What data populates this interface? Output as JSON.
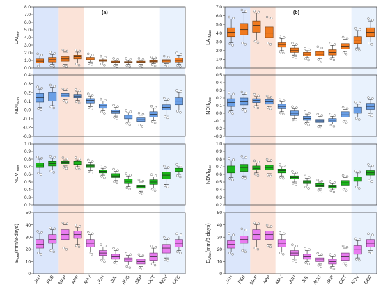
{
  "chart_data": [
    {
      "type": "boxplot",
      "panel_label": "(a)",
      "categories": [
        "JAN",
        "FEB",
        "MAR",
        "APR",
        "MAY",
        "JUN",
        "JUL",
        "AUG",
        "SEP",
        "OCT",
        "NOV",
        "DEC"
      ],
      "highlight_bands": [
        {
          "months": [
            "JAN",
            "FEB"
          ],
          "color": "#dbe6fb"
        },
        {
          "months": [
            "MAR",
            "APR"
          ],
          "color": "#fbe3d8"
        },
        {
          "months": [
            "NOV",
            "DEC"
          ],
          "color": "#e9f2fd"
        }
      ],
      "subplots": [
        {
          "ylabel": "LAI",
          "ysub": "Min",
          "ylim": [
            0,
            8
          ],
          "yticks": [
            0,
            1,
            2,
            3,
            4,
            5,
            6,
            7,
            8
          ],
          "tick_format": "0.0",
          "color": "#f07a1f",
          "boxes": [
            [
              0.4,
              0.7,
              0.9,
              1.2,
              1.6
            ],
            [
              0.5,
              0.8,
              1.1,
              1.4,
              1.8
            ],
            [
              0.5,
              0.9,
              1.2,
              1.5,
              2.1
            ],
            [
              0.7,
              1.2,
              1.5,
              1.7,
              2.1
            ],
            [
              0.8,
              1.1,
              1.3,
              1.4,
              1.6
            ],
            [
              0.7,
              0.9,
              1.0,
              1.1,
              1.3
            ],
            [
              0.5,
              0.7,
              0.8,
              0.9,
              1.0
            ],
            [
              0.5,
              0.7,
              0.75,
              0.85,
              1.0
            ],
            [
              0.5,
              0.7,
              0.8,
              0.9,
              1.0
            ],
            [
              0.6,
              0.8,
              0.9,
              1.0,
              1.2
            ],
            [
              0.6,
              0.8,
              1.0,
              1.1,
              1.3
            ],
            [
              0.5,
              0.8,
              1.0,
              1.3,
              1.7
            ]
          ]
        },
        {
          "ylabel": "NDII",
          "ysub": "Min",
          "ylim": [
            -0.3,
            0.4
          ],
          "yticks": [
            -0.3,
            -0.2,
            -0.1,
            0.0,
            0.1,
            0.2,
            0.3,
            0.4
          ],
          "tick_format": "0.0",
          "color": "#6a9fe6",
          "boxes": [
            [
              0.03,
              0.09,
              0.14,
              0.19,
              0.24
            ],
            [
              0.05,
              0.1,
              0.15,
              0.2,
              0.26
            ],
            [
              0.12,
              0.15,
              0.17,
              0.19,
              0.22
            ],
            [
              0.11,
              0.14,
              0.16,
              0.18,
              0.21
            ],
            [
              0.04,
              0.08,
              0.11,
              0.13,
              0.16
            ],
            [
              -0.01,
              0.02,
              0.05,
              0.07,
              0.1
            ],
            [
              -0.07,
              -0.04,
              -0.02,
              0.0,
              0.03
            ],
            [
              -0.14,
              -0.1,
              -0.08,
              -0.06,
              -0.03
            ],
            [
              -0.16,
              -0.13,
              -0.11,
              -0.09,
              -0.06
            ],
            [
              -0.12,
              -0.08,
              -0.05,
              -0.02,
              0.02
            ],
            [
              -0.06,
              0.0,
              0.03,
              0.06,
              0.11
            ],
            [
              0.0,
              0.06,
              0.1,
              0.14,
              0.2
            ]
          ]
        },
        {
          "ylabel": "NDVI",
          "ysub": "Min",
          "ylim": [
            0.2,
            1.0
          ],
          "yticks": [
            0.2,
            0.3,
            0.4,
            0.5,
            0.6,
            0.7,
            0.8,
            0.9,
            1.0
          ],
          "tick_format": "0.0",
          "color": "#1bb51b",
          "boxes": [
            [
              0.63,
              0.69,
              0.72,
              0.75,
              0.8
            ],
            [
              0.66,
              0.71,
              0.74,
              0.77,
              0.81
            ],
            [
              0.71,
              0.74,
              0.76,
              0.77,
              0.79
            ],
            [
              0.7,
              0.73,
              0.75,
              0.77,
              0.79
            ],
            [
              0.65,
              0.69,
              0.71,
              0.73,
              0.76
            ],
            [
              0.59,
              0.62,
              0.64,
              0.66,
              0.68
            ],
            [
              0.52,
              0.56,
              0.58,
              0.61,
              0.64
            ],
            [
              0.44,
              0.48,
              0.51,
              0.54,
              0.58
            ],
            [
              0.38,
              0.42,
              0.44,
              0.46,
              0.5
            ],
            [
              0.42,
              0.47,
              0.5,
              0.53,
              0.57
            ],
            [
              0.47,
              0.54,
              0.59,
              0.63,
              0.68
            ],
            [
              0.6,
              0.64,
              0.66,
              0.68,
              0.7
            ]
          ]
        },
        {
          "ylabel": "E",
          "ysub": "Min",
          "yunit": "(mm/8-days)",
          "ylim": [
            0,
            50
          ],
          "yticks": [
            0,
            10,
            20,
            30,
            40,
            50
          ],
          "tick_format": "0",
          "color": "#e97cf0",
          "boxes": [
            [
              18,
              21,
              24,
              28,
              33
            ],
            [
              20,
              25,
              28,
              32,
              36
            ],
            [
              22,
              28,
              32,
              36,
              40
            ],
            [
              24,
              29,
              32,
              35,
              38
            ],
            [
              18,
              22,
              25,
              28,
              32
            ],
            [
              12,
              15,
              17,
              19,
              22
            ],
            [
              10,
              12,
              14,
              16,
              19
            ],
            [
              7,
              10,
              12,
              13,
              15
            ],
            [
              6,
              8,
              10,
              12,
              14
            ],
            [
              9,
              11,
              14,
              17,
              21
            ],
            [
              13,
              17,
              21,
              24,
              28
            ],
            [
              19,
              22,
              25,
              28,
              31
            ]
          ]
        }
      ]
    },
    {
      "type": "boxplot",
      "panel_label": "(b)",
      "categories": [
        "JAN",
        "FEB",
        "MAR",
        "APR",
        "MAY",
        "JUN",
        "JUL",
        "AUG",
        "SEP",
        "OCT",
        "NOV",
        "DEC"
      ],
      "highlight_bands": [
        {
          "months": [
            "JAN",
            "FEB"
          ],
          "color": "#dbe6fb"
        },
        {
          "months": [
            "MAR",
            "APR"
          ],
          "color": "#fbe3d8"
        },
        {
          "months": [
            "NOV",
            "DEC"
          ],
          "color": "#e9f2fd"
        }
      ],
      "subplots": [
        {
          "ylabel": "LAI",
          "ysub": "Max",
          "ylim": [
            0,
            7
          ],
          "yticks": [
            0,
            1,
            2,
            3,
            4,
            5,
            6,
            7
          ],
          "tick_format": "0.0",
          "color": "#f07a1f",
          "boxes": [
            [
              2.9,
              3.6,
              4.1,
              4.6,
              5.6
            ],
            [
              3.0,
              3.8,
              4.4,
              5.1,
              6.4
            ],
            [
              3.2,
              4.1,
              4.9,
              5.4,
              6.3
            ],
            [
              3.0,
              3.5,
              4.0,
              4.7,
              5.6
            ],
            [
              2.0,
              2.4,
              2.7,
              2.9,
              3.4
            ],
            [
              1.5,
              1.8,
              2.0,
              2.3,
              2.6
            ],
            [
              1.2,
              1.4,
              1.6,
              1.8,
              2.0
            ],
            [
              1.1,
              1.4,
              1.6,
              1.9,
              2.2
            ],
            [
              1.2,
              1.5,
              1.8,
              2.1,
              2.6
            ],
            [
              1.9,
              2.2,
              2.5,
              2.8,
              3.3
            ],
            [
              2.3,
              2.8,
              3.2,
              3.6,
              4.3
            ],
            [
              3.0,
              3.6,
              4.1,
              4.6,
              5.4
            ]
          ]
        },
        {
          "ylabel": "NDII",
          "ysub": "Max",
          "ylim": [
            -0.3,
            0.5
          ],
          "yticks": [
            -0.3,
            -0.2,
            -0.1,
            0.0,
            0.1,
            0.2,
            0.3,
            0.4,
            0.5
          ],
          "tick_format": "0.0",
          "color": "#6a9fe6",
          "boxes": [
            [
              0.03,
              0.09,
              0.14,
              0.19,
              0.24
            ],
            [
              0.06,
              0.11,
              0.15,
              0.2,
              0.25
            ],
            [
              0.1,
              0.14,
              0.17,
              0.19,
              0.22
            ],
            [
              0.09,
              0.12,
              0.15,
              0.18,
              0.2
            ],
            [
              0.02,
              0.06,
              0.09,
              0.12,
              0.15
            ],
            [
              -0.07,
              -0.03,
              0.0,
              0.03,
              0.06
            ],
            [
              -0.12,
              -0.09,
              -0.07,
              -0.04,
              -0.01
            ],
            [
              -0.16,
              -0.12,
              -0.1,
              -0.08,
              -0.04
            ],
            [
              -0.14,
              -0.11,
              -0.09,
              -0.07,
              -0.04
            ],
            [
              -0.09,
              -0.05,
              -0.02,
              0.02,
              0.05
            ],
            [
              -0.05,
              0.0,
              0.04,
              0.08,
              0.12
            ],
            [
              0.0,
              0.05,
              0.09,
              0.13,
              0.18
            ]
          ]
        },
        {
          "ylabel": "NDVI",
          "ysub": "Max",
          "ylim": [
            0.2,
            1.0
          ],
          "yticks": [
            0.2,
            0.3,
            0.4,
            0.5,
            0.6,
            0.7,
            0.8,
            0.9,
            1.0
          ],
          "tick_format": "0.0",
          "color": "#1bb51b",
          "boxes": [
            [
              0.56,
              0.62,
              0.66,
              0.71,
              0.78
            ],
            [
              0.58,
              0.64,
              0.69,
              0.73,
              0.81
            ],
            [
              0.62,
              0.66,
              0.68,
              0.71,
              0.75
            ],
            [
              0.61,
              0.66,
              0.69,
              0.72,
              0.77
            ],
            [
              0.58,
              0.62,
              0.65,
              0.67,
              0.7
            ],
            [
              0.5,
              0.54,
              0.56,
              0.58,
              0.61
            ],
            [
              0.45,
              0.48,
              0.5,
              0.52,
              0.55
            ],
            [
              0.41,
              0.44,
              0.46,
              0.48,
              0.5
            ],
            [
              0.4,
              0.42,
              0.44,
              0.46,
              0.48
            ],
            [
              0.42,
              0.46,
              0.49,
              0.52,
              0.56
            ],
            [
              0.45,
              0.51,
              0.54,
              0.57,
              0.62
            ],
            [
              0.54,
              0.59,
              0.62,
              0.65,
              0.7
            ]
          ]
        },
        {
          "ylabel": "E",
          "ysub": "Max",
          "yunit": "(mm/8-days)",
          "ylim": [
            0,
            50
          ],
          "yticks": [
            0,
            10,
            20,
            30,
            40,
            50
          ],
          "tick_format": "0",
          "color": "#e97cf0",
          "boxes": [
            [
              18,
              21,
              24,
              27,
              31
            ],
            [
              20,
              25,
              28,
              31,
              35
            ],
            [
              22,
              28,
              32,
              36,
              40
            ],
            [
              24,
              28,
              32,
              35,
              38
            ],
            [
              18,
              22,
              25,
              28,
              32
            ],
            [
              12,
              15,
              17,
              19,
              22
            ],
            [
              10,
              12,
              14,
              16,
              19
            ],
            [
              8,
              10,
              12,
              13,
              15
            ],
            [
              6,
              8,
              10,
              12,
              14
            ],
            [
              9,
              11,
              14,
              17,
              21
            ],
            [
              13,
              16,
              20,
              23,
              27
            ],
            [
              19,
              22,
              25,
              28,
              31
            ]
          ]
        }
      ]
    }
  ]
}
